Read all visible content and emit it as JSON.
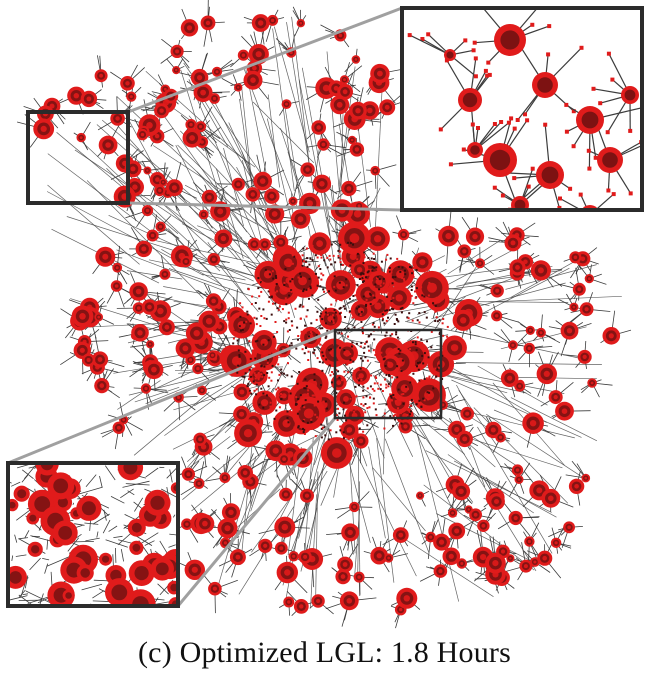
{
  "caption": "(c)  Optimized LGL: 1.8 Hours",
  "colors": {
    "node": "#e01b1b",
    "node_dark": "#3a0d0d",
    "edge": "#3c3c3c",
    "frame": "#2b2b2b",
    "connector": "#a0a0a0",
    "background": "#ffffff"
  }
}
